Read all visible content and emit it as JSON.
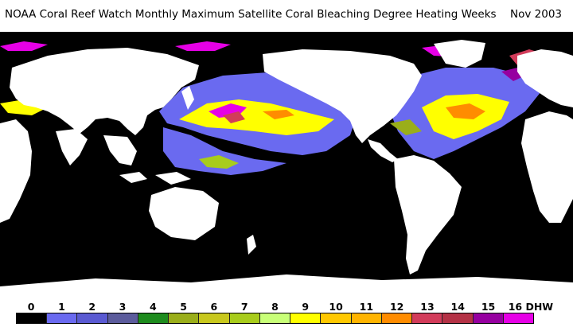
{
  "title": {
    "text": "NOAA Coral Reef Watch Monthly Maximum Satellite Coral Bleaching Degree Heating Weeks",
    "date": "Nov 2003"
  },
  "map": {
    "land_color": "#ffffff",
    "ocean_color": "#000000",
    "colors": {
      "c1": "#6a6af0",
      "c4": "#1e8c1e",
      "c5": "#9aae1a",
      "c7": "#a8cc1c",
      "c8": "#c8ff78",
      "c9": "#ffff00",
      "c10": "#ffc800",
      "c12": "#ff8c00",
      "c13": "#d23c5a",
      "c15": "#9600a0",
      "c16": "#e600e6"
    }
  },
  "legend": {
    "ticks": [
      "0",
      "1",
      "2",
      "3",
      "4",
      "5",
      "6",
      "7",
      "8",
      "9",
      "10",
      "11",
      "12",
      "13",
      "14",
      "15",
      "16 DHW"
    ],
    "colors": [
      "#000000",
      "#6a6af0",
      "#5a5ad2",
      "#5c5c9c",
      "#1e8c1e",
      "#9aae1a",
      "#c8c81e",
      "#a8cc1c",
      "#c8ff78",
      "#ffff00",
      "#ffc800",
      "#ffb400",
      "#ff8c00",
      "#d23c5a",
      "#b43246",
      "#9600a0",
      "#e600e6"
    ]
  }
}
